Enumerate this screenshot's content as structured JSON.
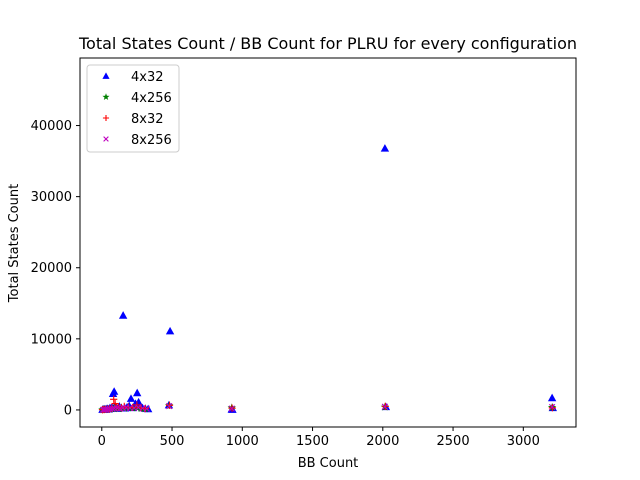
{
  "chart_data": {
    "type": "scatter",
    "title": "Total States Count / BB Count for PLRU for every configuration",
    "xlabel": "BB Count",
    "ylabel": "Total States Count",
    "xlim": [
      -155,
      3375
    ],
    "ylim": [
      -2400,
      49500
    ],
    "xticks": [
      0,
      500,
      1000,
      1500,
      2000,
      2500,
      3000
    ],
    "xtick_labels": [
      "0",
      "500",
      "1000",
      "1500",
      "2000",
      "2500",
      "3000"
    ],
    "yticks": [
      0,
      10000,
      20000,
      30000,
      40000
    ],
    "ytick_labels": [
      "0",
      "10000",
      "20000",
      "30000",
      "40000"
    ],
    "grid": false,
    "legend_position": "top-left",
    "series": [
      {
        "name": "4x32",
        "color": "#0000ff",
        "marker": "triangle-up",
        "points": [
          [
            5,
            60
          ],
          [
            12,
            90
          ],
          [
            20,
            120
          ],
          [
            28,
            60
          ],
          [
            35,
            150
          ],
          [
            42,
            200
          ],
          [
            50,
            110
          ],
          [
            58,
            300
          ],
          [
            65,
            180
          ],
          [
            72,
            400
          ],
          [
            80,
            2300
          ],
          [
            88,
            2600
          ],
          [
            95,
            600
          ],
          [
            105,
            350
          ],
          [
            115,
            200
          ],
          [
            125,
            500
          ],
          [
            140,
            300
          ],
          [
            152,
            13300
          ],
          [
            165,
            250
          ],
          [
            180,
            400
          ],
          [
            195,
            600
          ],
          [
            208,
            1600
          ],
          [
            222,
            300
          ],
          [
            240,
            900
          ],
          [
            252,
            2400
          ],
          [
            262,
            1100
          ],
          [
            275,
            500
          ],
          [
            290,
            300
          ],
          [
            310,
            200
          ],
          [
            330,
            150
          ],
          [
            478,
            700
          ],
          [
            486,
            11100
          ],
          [
            925,
            100
          ],
          [
            930,
            60
          ],
          [
            2015,
            36800
          ],
          [
            2022,
            450
          ],
          [
            3205,
            1700
          ],
          [
            3210,
            300
          ]
        ]
      },
      {
        "name": "4x256",
        "color": "#008000",
        "marker": "star",
        "points": [
          [
            5,
            20
          ],
          [
            15,
            40
          ],
          [
            25,
            60
          ],
          [
            40,
            80
          ],
          [
            55,
            100
          ],
          [
            70,
            150
          ],
          [
            85,
            200
          ],
          [
            100,
            250
          ],
          [
            120,
            180
          ],
          [
            140,
            300
          ],
          [
            160,
            220
          ],
          [
            190,
            350
          ],
          [
            220,
            280
          ],
          [
            250,
            320
          ],
          [
            280,
            200
          ],
          [
            310,
            150
          ],
          [
            480,
            600
          ],
          [
            925,
            300
          ],
          [
            2015,
            400
          ],
          [
            3205,
            350
          ]
        ]
      },
      {
        "name": "8x32",
        "color": "#ff0000",
        "marker": "plus",
        "points": [
          [
            5,
            30
          ],
          [
            15,
            60
          ],
          [
            25,
            80
          ],
          [
            40,
            120
          ],
          [
            55,
            150
          ],
          [
            70,
            250
          ],
          [
            85,
            1500
          ],
          [
            95,
            900
          ],
          [
            105,
            400
          ],
          [
            120,
            350
          ],
          [
            140,
            300
          ],
          [
            160,
            500
          ],
          [
            190,
            400
          ],
          [
            220,
            350
          ],
          [
            250,
            700
          ],
          [
            280,
            300
          ],
          [
            310,
            200
          ],
          [
            482,
            650
          ],
          [
            927,
            250
          ],
          [
            2018,
            500
          ],
          [
            3207,
            300
          ]
        ]
      },
      {
        "name": "8x256",
        "color": "#bf00bf",
        "marker": "x",
        "points": [
          [
            8,
            20
          ],
          [
            18,
            40
          ],
          [
            30,
            60
          ],
          [
            45,
            90
          ],
          [
            60,
            120
          ],
          [
            75,
            180
          ],
          [
            90,
            220
          ],
          [
            110,
            260
          ],
          [
            130,
            200
          ],
          [
            150,
            280
          ],
          [
            175,
            320
          ],
          [
            200,
            300
          ],
          [
            230,
            280
          ],
          [
            260,
            350
          ],
          [
            290,
            250
          ],
          [
            320,
            180
          ],
          [
            480,
            550
          ],
          [
            925,
            200
          ],
          [
            2015,
            450
          ],
          [
            3205,
            400
          ]
        ]
      }
    ]
  }
}
